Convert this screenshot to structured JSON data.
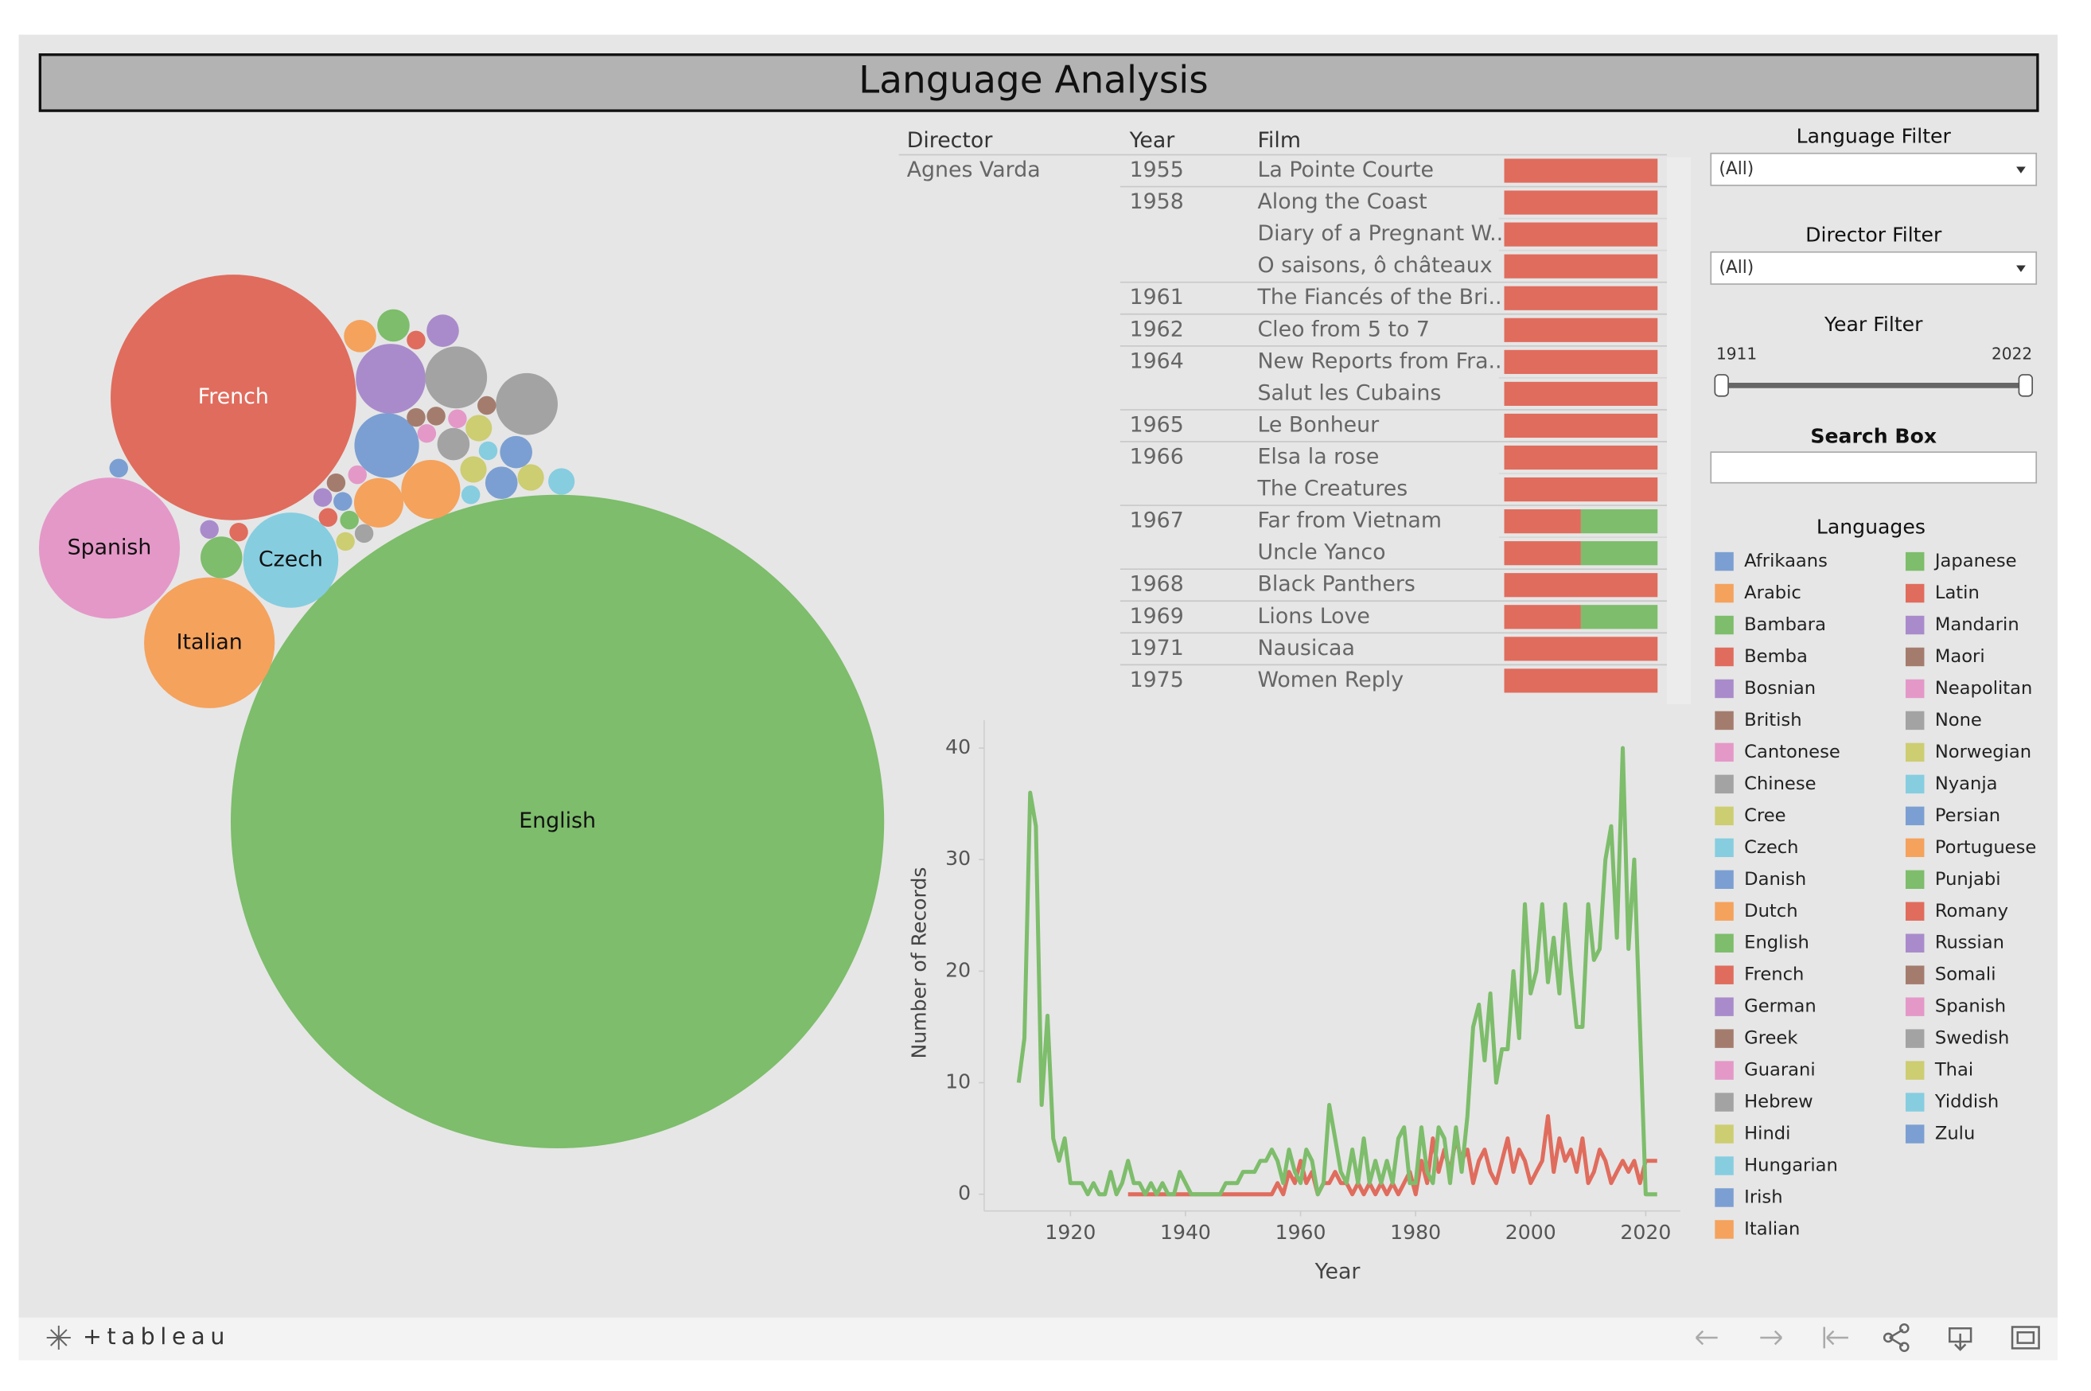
{
  "header": {
    "title": "Language Analysis"
  },
  "chart_data": [
    {
      "type": "bubble",
      "categories": [
        "English",
        "French",
        "Spanish",
        "Italian",
        "Czech",
        null,
        null,
        null,
        null,
        null,
        null,
        null,
        null,
        null,
        null,
        null,
        null,
        null,
        null,
        null,
        null,
        null,
        null,
        null,
        null,
        null,
        null,
        null,
        null,
        null,
        null,
        null,
        null,
        null,
        null,
        null,
        null,
        null,
        null,
        null,
        null
      ],
      "values": [
        1225,
        173,
        57,
        49,
        26,
        14,
        11,
        11,
        12,
        10,
        7,
        3,
        3,
        3,
        3,
        3,
        3,
        5,
        2,
        2,
        2,
        2,
        1,
        1,
        1,
        1,
        1,
        1,
        1,
        1,
        1,
        1,
        1,
        1,
        1,
        1,
        1,
        1,
        1,
        1,
        1
      ],
      "colors": [
        "#7dbd6b",
        "#e06c5d",
        "#e498c8",
        "#f5a25d",
        "#86cde0",
        "#a98bcb",
        "#a3a3a3",
        "#a3a3a3",
        "#7b9fd2",
        "#f5a25d",
        "#f5a25d",
        "#f5a25d",
        "#7dbd6b",
        "#a98bcb",
        "#7b9fd2",
        "#7b9fd2",
        "#a3a3a3",
        "#7dbd6b",
        "#86cde0",
        "#cdcd72",
        "#cdcd72",
        "#cdcd72",
        "#e06c5d",
        "#7b9fd2",
        "#a98bcb",
        "#e06c5d",
        "#e06c5d",
        "#7dbd6b",
        "#a3a3a3",
        "#cdcd72",
        "#a98bcb",
        "#7b9fd2",
        "#a47c6e",
        "#e498c8",
        "#a47c6e",
        "#a47c6e",
        "#a47c6e",
        "#e498c8",
        "#e498c8",
        "#86cde0",
        "#86cde0"
      ]
    },
    {
      "type": "line",
      "x_label": "Year",
      "y_label": "Number of Records",
      "x": [
        1911,
        1912,
        1913,
        1914,
        1915,
        1916,
        1917,
        1918,
        1919,
        1920,
        1921,
        1922,
        1923,
        1924,
        1925,
        1926,
        1927,
        1928,
        1929,
        1930,
        1931,
        1932,
        1933,
        1934,
        1935,
        1936,
        1937,
        1938,
        1939,
        1940,
        1941,
        1942,
        1943,
        1944,
        1945,
        1946,
        1947,
        1948,
        1949,
        1950,
        1951,
        1952,
        1953,
        1954,
        1955,
        1956,
        1957,
        1958,
        1959,
        1960,
        1961,
        1962,
        1963,
        1964,
        1965,
        1966,
        1967,
        1968,
        1969,
        1970,
        1971,
        1972,
        1973,
        1974,
        1975,
        1976,
        1977,
        1978,
        1979,
        1980,
        1981,
        1982,
        1983,
        1984,
        1985,
        1986,
        1987,
        1988,
        1989,
        1990,
        1991,
        1992,
        1993,
        1994,
        1995,
        1996,
        1997,
        1998,
        1999,
        2000,
        2001,
        2002,
        2003,
        2004,
        2005,
        2006,
        2007,
        2008,
        2009,
        2010,
        2011,
        2012,
        2013,
        2014,
        2015,
        2016,
        2017,
        2018,
        2019,
        2020,
        2021,
        2022
      ],
      "series": [
        {
          "color": "#e06c5d",
          "values": [
            null,
            null,
            null,
            null,
            null,
            null,
            null,
            null,
            null,
            null,
            null,
            null,
            null,
            null,
            null,
            null,
            null,
            null,
            null,
            0,
            0,
            0,
            0,
            0,
            0,
            0,
            0,
            0,
            0,
            0,
            0,
            0,
            0,
            0,
            0,
            0,
            0,
            0,
            0,
            0,
            0,
            0,
            0,
            0,
            0,
            1,
            0,
            2,
            1,
            3,
            1,
            2,
            0,
            1,
            1,
            2,
            1,
            1,
            0,
            1,
            0,
            1,
            0,
            1,
            0,
            1,
            0,
            1,
            2,
            0,
            3,
            1,
            5,
            2,
            4,
            2,
            5,
            3,
            4,
            1,
            3,
            4,
            2,
            1,
            3,
            5,
            2,
            4,
            3,
            1,
            2,
            3,
            7,
            2,
            5,
            3,
            4,
            2,
            5,
            1,
            2,
            4,
            3,
            1,
            2,
            3,
            2,
            3,
            1,
            3,
            3,
            3
          ]
        },
        {
          "color": "#7dbd6b",
          "values": [
            10,
            14,
            36,
            33,
            8,
            16,
            5,
            3,
            5,
            1,
            1,
            1,
            0,
            1,
            0,
            0,
            2,
            0,
            1,
            3,
            1,
            1,
            0,
            1,
            0,
            1,
            0,
            0,
            2,
            1,
            0,
            0,
            0,
            0,
            0,
            0,
            1,
            1,
            1,
            2,
            2,
            2,
            3,
            3,
            4,
            3,
            1,
            4,
            2,
            1,
            4,
            3,
            0,
            1,
            8,
            5,
            2,
            1,
            4,
            1,
            5,
            1,
            3,
            1,
            3,
            1,
            5,
            6,
            1,
            1,
            6,
            2,
            1,
            6,
            5,
            1,
            6,
            2,
            7,
            15,
            17,
            12,
            18,
            10,
            13,
            13,
            20,
            14,
            26,
            18,
            20,
            26,
            19,
            23,
            18,
            26,
            20,
            15,
            15,
            26,
            21,
            22,
            30,
            33,
            23,
            40,
            22,
            30,
            15,
            0,
            0,
            0
          ]
        }
      ],
      "xlim": [
        1905,
        2026
      ],
      "ylim": [
        -1.5,
        42.5
      ],
      "xticks": [
        1920,
        1940,
        1960,
        1980,
        2000,
        2020
      ],
      "yticks": [
        0,
        10,
        20,
        30,
        40
      ]
    }
  ],
  "table": {
    "columns": [
      "Director",
      "Year",
      "Film"
    ],
    "director": "Agnes Varda",
    "rows": [
      {
        "year": "1955",
        "film": "La Pointe Courte"
      },
      {
        "year": "1958",
        "film": "Along the Coast"
      },
      {
        "year": null,
        "film": "Diary of a Pregnant W.."
      },
      {
        "year": null,
        "film": "O saisons, ô châteaux"
      },
      {
        "year": "1961",
        "film": "The Fiancés of the Bri.."
      },
      {
        "year": "1962",
        "film": "Cleo from 5 to 7"
      },
      {
        "year": "1964",
        "film": "New Reports from Fra.."
      },
      {
        "year": null,
        "film": "Salut les Cubains"
      },
      {
        "year": "1965",
        "film": "Le Bonheur"
      },
      {
        "year": "1966",
        "film": "Elsa la rose"
      },
      {
        "year": null,
        "film": "The Creatures"
      },
      {
        "year": "1967",
        "film": "Far from Vietnam"
      },
      {
        "year": null,
        "film": "Uncle Yanco"
      },
      {
        "year": "1968",
        "film": "Black Panthers"
      },
      {
        "year": "1969",
        "film": "Lions Love"
      },
      {
        "year": "1971",
        "film": "Nausicaa"
      },
      {
        "year": "1975",
        "film": "Women Reply"
      }
    ],
    "bar_series": [
      {
        "color": "#e06c5d",
        "values": [
          1,
          1,
          1,
          1,
          1,
          1,
          1,
          1,
          1,
          1,
          1,
          1,
          1,
          1,
          1,
          1,
          1
        ]
      },
      {
        "color": "#7dbd6b",
        "values": [
          0,
          0,
          0,
          0,
          0,
          0,
          0,
          0,
          0,
          0,
          0,
          1,
          1,
          0,
          1,
          0,
          0
        ]
      }
    ]
  },
  "filters": {
    "language": {
      "title": "Language Filter",
      "value": "(All)"
    },
    "director": {
      "title": "Director Filter",
      "value": "(All)"
    },
    "year": {
      "title": "Year Filter",
      "min": "1911",
      "max": "2022"
    },
    "search": {
      "title": "Search Box"
    }
  },
  "legend": {
    "title": "Languages",
    "items": [
      {
        "name": "Afrikaans",
        "color": "#7b9fd2"
      },
      {
        "name": "Arabic",
        "color": "#f5a25d"
      },
      {
        "name": "Bambara",
        "color": "#7dbd6b"
      },
      {
        "name": "Bemba",
        "color": "#e06c5d"
      },
      {
        "name": "Bosnian",
        "color": "#a98bcb"
      },
      {
        "name": "British",
        "color": "#a47c6e"
      },
      {
        "name": "Cantonese",
        "color": "#e498c8"
      },
      {
        "name": "Chinese",
        "color": "#a3a3a3"
      },
      {
        "name": "Cree",
        "color": "#cdcd72"
      },
      {
        "name": "Czech",
        "color": "#86cde0"
      },
      {
        "name": "Danish",
        "color": "#7b9fd2"
      },
      {
        "name": "Dutch",
        "color": "#f5a25d"
      },
      {
        "name": "English",
        "color": "#7dbd6b"
      },
      {
        "name": "French",
        "color": "#e06c5d"
      },
      {
        "name": "German",
        "color": "#a98bcb"
      },
      {
        "name": "Greek",
        "color": "#a47c6e"
      },
      {
        "name": "Guarani",
        "color": "#e498c8"
      },
      {
        "name": "Hebrew",
        "color": "#a3a3a3"
      },
      {
        "name": "Hindi",
        "color": "#cdcd72"
      },
      {
        "name": "Hungarian",
        "color": "#86cde0"
      },
      {
        "name": "Irish",
        "color": "#7b9fd2"
      },
      {
        "name": "Italian",
        "color": "#f5a25d"
      },
      {
        "name": "Japanese",
        "color": "#7dbd6b"
      },
      {
        "name": "Latin",
        "color": "#e06c5d"
      },
      {
        "name": "Mandarin",
        "color": "#a98bcb"
      },
      {
        "name": "Maori",
        "color": "#a47c6e"
      },
      {
        "name": "Neapolitan",
        "color": "#e498c8"
      },
      {
        "name": "None",
        "color": "#a3a3a3"
      },
      {
        "name": "Norwegian",
        "color": "#cdcd72"
      },
      {
        "name": "Nyanja",
        "color": "#86cde0"
      },
      {
        "name": "Persian",
        "color": "#7b9fd2"
      },
      {
        "name": "Portuguese",
        "color": "#f5a25d"
      },
      {
        "name": "Punjabi",
        "color": "#7dbd6b"
      },
      {
        "name": "Romany",
        "color": "#e06c5d"
      },
      {
        "name": "Russian",
        "color": "#a98bcb"
      },
      {
        "name": "Somali",
        "color": "#a47c6e"
      },
      {
        "name": "Spanish",
        "color": "#e498c8"
      },
      {
        "name": "Swedish",
        "color": "#a3a3a3"
      },
      {
        "name": "Thai",
        "color": "#cdcd72"
      },
      {
        "name": "Yiddish",
        "color": "#86cde0"
      },
      {
        "name": "Zulu",
        "color": "#7b9fd2"
      }
    ]
  },
  "footer": {
    "logo": "+tableau"
  }
}
